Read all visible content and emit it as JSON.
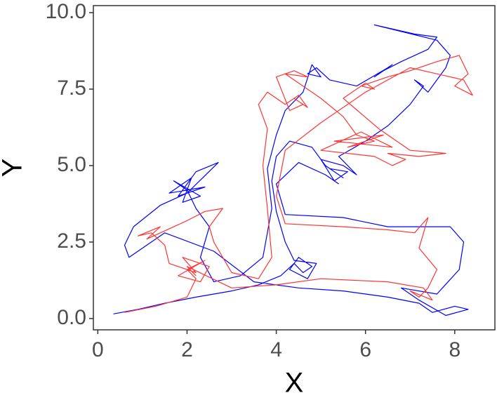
{
  "chart_data": {
    "type": "line",
    "x_label": "X",
    "y_label": "Y",
    "xlim": [
      -0.1,
      8.9
    ],
    "xticks": [
      0,
      2,
      4,
      6,
      8
    ],
    "ylim": [
      -0.37,
      10.23
    ],
    "yticks": [
      {
        "value": 0,
        "label": "0.0"
      },
      2.5,
      {
        "value": 5,
        "label": "5.0"
      },
      7.5,
      {
        "value": 10,
        "label": "10.0"
      }
    ],
    "grid": false,
    "series": [
      {
        "color": "#0000ff",
        "x": [
          0.35,
          0.9,
          1.5,
          2.2,
          3.0,
          3.6,
          4.1,
          4.4,
          4.6,
          4.8,
          4.5,
          4.3,
          4.7,
          4.9,
          4.4,
          4.2,
          4.0,
          3.9,
          4.0,
          4.3,
          4.8,
          5.1,
          5.5,
          5.2,
          5.6,
          5.3,
          5.0,
          5.5,
          5.8,
          5.4,
          6.0,
          6.5,
          7.0,
          7.3,
          7.1,
          7.4,
          7.8,
          7.9,
          7.6,
          6.2,
          7.1,
          7.6,
          7.4,
          6.8,
          6.4,
          6.6,
          6.2,
          6.5,
          5.8,
          5.2,
          4.9,
          4.7,
          5.0,
          4.8,
          4.6,
          4.2,
          4.0,
          3.8,
          3.9,
          3.7,
          3.2,
          2.6,
          2.3,
          2.5,
          2.2,
          2.0,
          1.7,
          2.3,
          1.9,
          2.1,
          1.6,
          2.4,
          1.8,
          2.2,
          2.7,
          2.0,
          1.4,
          0.8,
          0.6,
          0.7,
          1.5,
          2.6,
          3.5,
          4.5,
          5.5,
          6.5,
          7.2,
          7.5,
          8.0,
          8.3,
          7.8,
          7.2,
          6.8,
          7.6,
          8.1,
          8.2,
          7.9,
          6.5,
          5.5,
          4.2,
          4.0,
          4.5,
          5.1,
          5.4
        ],
        "y": [
          0.15,
          0.3,
          0.5,
          0.7,
          0.9,
          1.1,
          1.4,
          1.8,
          1.5,
          1.7,
          2.0,
          1.6,
          1.3,
          1.8,
          1.9,
          2.5,
          3.5,
          4.5,
          5.3,
          5.8,
          5.6,
          5.0,
          4.6,
          4.9,
          4.8,
          4.5,
          5.2,
          5.0,
          4.7,
          5.3,
          5.8,
          6.3,
          7.0,
          7.6,
          7.8,
          7.4,
          8.2,
          8.6,
          9.1,
          9.6,
          9.3,
          9.2,
          8.8,
          8.4,
          8.1,
          8.3,
          7.9,
          8.2,
          7.6,
          7.8,
          8.2,
          8.0,
          7.9,
          8.3,
          7.4,
          6.8,
          6.0,
          4.9,
          3.6,
          2.0,
          1.4,
          1.2,
          2.0,
          3.0,
          3.6,
          4.2,
          4.5,
          4.0,
          3.8,
          4.6,
          4.1,
          4.3,
          4.0,
          4.8,
          5.1,
          4.1,
          3.7,
          3.0,
          2.4,
          2.0,
          2.8,
          2.2,
          1.2,
          1.0,
          0.9,
          0.7,
          0.5,
          0.2,
          0.4,
          0.3,
          0.1,
          0.6,
          1.0,
          0.8,
          1.6,
          2.5,
          3.0,
          3.0,
          3.3,
          3.4,
          4.4,
          5.1,
          4.7,
          4.4
        ]
      },
      {
        "color": "#ff3333",
        "x": [
          0.6,
          1.3,
          2.0,
          2.2,
          2.0,
          2.4,
          1.8,
          2.3,
          2.5,
          1.9,
          2.2,
          1.6,
          1.5,
          1.2,
          0.9,
          1.4,
          1.1,
          2.0,
          2.4,
          2.8,
          2.5,
          2.6,
          3.0,
          3.6,
          3.9,
          3.8,
          3.7,
          3.8,
          3.6,
          3.8,
          4.2,
          4.5,
          4.7,
          4.4,
          4.6,
          4.3,
          4.0,
          4.4,
          4.7,
          4.2,
          5.0,
          5.5,
          5.8,
          6.2,
          5.6,
          6.4,
          5.3,
          6.6,
          5.9,
          5.0,
          6.2,
          6.6,
          6.9,
          6.5,
          7.2,
          7.8,
          7.0,
          6.3,
          5.5,
          6.0,
          6.2,
          5.9,
          6.5,
          7.0,
          7.6,
          8.1,
          8.3,
          8.0,
          8.4,
          8.2,
          7.0,
          6.0,
          5.0,
          4.2,
          4.0,
          4.2,
          5.5,
          6.5,
          7.1,
          7.4,
          7.2,
          7.6,
          7.4,
          7.2,
          7.0,
          7.5,
          7.3,
          6.5,
          5.0,
          4.0,
          3.0,
          2.0,
          2.2
        ],
        "y": [
          0.2,
          0.4,
          0.7,
          1.3,
          1.6,
          1.9,
          1.4,
          1.2,
          1.7,
          2.0,
          1.5,
          1.8,
          2.4,
          2.8,
          2.7,
          3.0,
          2.6,
          3.2,
          3.5,
          3.6,
          3.0,
          2.5,
          1.5,
          1.3,
          2.0,
          3.6,
          5.0,
          6.2,
          7.0,
          7.4,
          7.0,
          7.3,
          6.9,
          7.2,
          7.0,
          6.8,
          7.9,
          8.1,
          7.9,
          8.0,
          7.2,
          6.6,
          6.0,
          5.8,
          5.6,
          6.0,
          5.8,
          5.6,
          6.1,
          5.5,
          5.3,
          5.0,
          5.2,
          5.4,
          5.3,
          5.4,
          5.5,
          6.2,
          7.2,
          7.7,
          7.5,
          7.6,
          7.9,
          8.1,
          8.4,
          8.6,
          8.0,
          7.6,
          7.3,
          7.8,
          8.2,
          7.4,
          6.4,
          5.5,
          4.0,
          3.1,
          3.0,
          2.9,
          2.8,
          3.3,
          2.3,
          1.6,
          1.0,
          0.7,
          0.9,
          0.6,
          1.0,
          1.2,
          1.3,
          1.1,
          1.0,
          1.7,
          1.4
        ]
      }
    ]
  }
}
